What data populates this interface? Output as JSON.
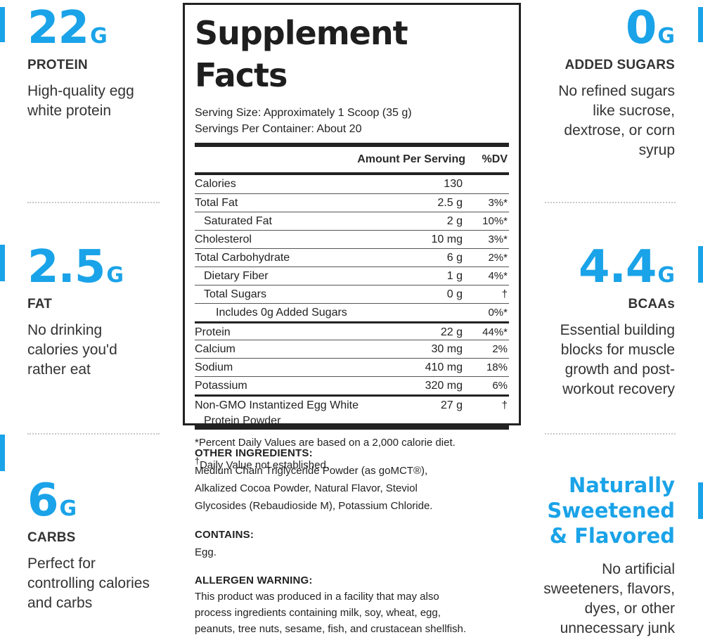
{
  "left_stats": [
    {
      "value": "22",
      "unit": "G",
      "label": "PROTEIN",
      "desc": [
        "High-quality egg",
        "white protein"
      ]
    },
    {
      "value": "2.5",
      "unit": "G",
      "label": "FAT",
      "desc": [
        "No drinking",
        "calories you'd",
        "rather eat"
      ]
    },
    {
      "value": "6",
      "unit": "G",
      "label": "CARBS",
      "desc": [
        "Perfect for",
        "controlling calories",
        "and carbs"
      ]
    }
  ],
  "right_stats": [
    {
      "value": "0",
      "unit": "G",
      "label": "ADDED SUGARS",
      "desc": [
        "No refined sugars",
        "like sucrose,",
        "dextrose, or corn",
        "syrup"
      ]
    },
    {
      "value": "4.4",
      "unit": "G",
      "label": "BCAAs",
      "desc": [
        "Essential building",
        "blocks for muscle",
        "growth and post-",
        "workout recovery"
      ]
    },
    {
      "headline": [
        "Naturally",
        "Sweetened",
        "& Flavored"
      ],
      "desc": [
        "No artificial",
        "sweeteners, flavors,",
        "dyes, or other",
        "unnecessary junk"
      ]
    }
  ],
  "facts": {
    "title": "Supplement Facts",
    "serving_size": "Serving Size: Approximately 1 Scoop (35 g)",
    "servings_per_container": "Servings Per Container: About 20",
    "header_amount": "Amount Per Serving",
    "header_dv": "%DV",
    "rows": [
      {
        "name": "Calories",
        "amount": "130",
        "dv": ""
      },
      {
        "name": "Total Fat",
        "amount": "2.5 g",
        "dv": "3%*"
      },
      {
        "name": "Saturated Fat",
        "amount": "2 g",
        "dv": "10%*"
      },
      {
        "name": "Cholesterol",
        "amount": "10 mg",
        "dv": "3%*"
      },
      {
        "name": "Total Carbohydrate",
        "amount": "6 g",
        "dv": "2%*"
      },
      {
        "name": "Dietary Fiber",
        "amount": "1 g",
        "dv": "4%*"
      },
      {
        "name": "Total Sugars",
        "amount": "0 g",
        "dv": "†"
      },
      {
        "name": "Includes 0g Added Sugars",
        "amount": "",
        "dv": "0%*"
      },
      {
        "name": "Protein",
        "amount": "22 g",
        "dv": "44%*"
      },
      {
        "name": "Calcium",
        "amount": "30 mg",
        "dv": "2%"
      },
      {
        "name": "Sodium",
        "amount": "410 mg",
        "dv": "18%"
      },
      {
        "name": "Potassium",
        "amount": "320 mg",
        "dv": "6%"
      },
      {
        "name": "Non-GMO Instantized Egg White",
        "name2": "Protein Powder",
        "amount": "27 g",
        "dv": "†"
      }
    ],
    "footnote1": "*Percent Daily Values are based on a 2,000 calorie diet.",
    "footnote2_mark": "†",
    "footnote2": "Daily Value not established."
  },
  "ingredients": {
    "other_head": "OTHER INGREDIENTS:",
    "other_lines": [
      "Medium Chain Triglyceride Powder (as goMCT®),",
      "Alkalized Cocoa Powder, Natural Flavor, Steviol",
      "Glycosides (Rebaudioside M), Potassium Chloride."
    ],
    "contains_head": "CONTAINS:",
    "contains_text": "Egg.",
    "allergen_head": "ALLERGEN WARNING:",
    "allergen_lines": [
      "This product was produced in a facility that may also",
      "process ingredients containing milk, soy, wheat, egg,",
      "peanuts, tree nuts, sesame, fish, and crustacean shellfish."
    ]
  },
  "colors": {
    "accent": "#1aa3e8",
    "text": "#2a2a2a",
    "border": "#222222"
  }
}
